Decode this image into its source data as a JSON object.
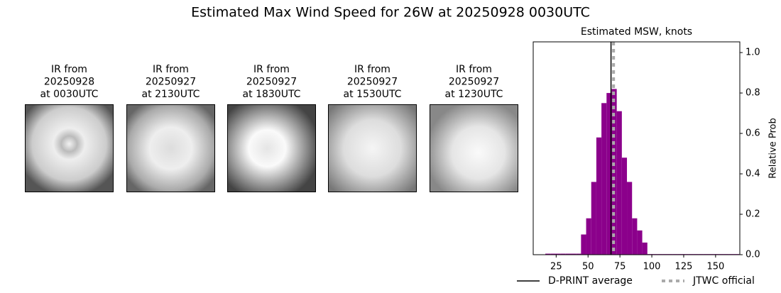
{
  "title": "Estimated Max Wind Speed for 26W at 20250928 0030UTC",
  "panels": [
    {
      "lines": [
        "IR from",
        "20250928",
        "at 0030UTC"
      ]
    },
    {
      "lines": [
        "IR from",
        "20250927",
        "at 2130UTC"
      ]
    },
    {
      "lines": [
        "IR from",
        "20250927",
        "at 1830UTC"
      ]
    },
    {
      "lines": [
        "IR from",
        "20250927",
        "at 1530UTC"
      ]
    },
    {
      "lines": [
        "IR from",
        "20250927",
        "at 1230UTC"
      ]
    }
  ],
  "chart_data": {
    "type": "histogram",
    "title": "Estimated MSW, knots",
    "y_label": "Relative Prob",
    "color": "#8b008b",
    "bins": [
      16.5,
      20.5,
      24.5,
      28.5,
      32.5,
      36.5,
      40.5,
      44.5,
      48.5,
      52.5,
      56.5,
      60.5,
      64.5,
      68.5,
      72.5,
      76.5,
      80.5,
      84.5,
      88.5,
      92.5,
      96.5,
      100.5,
      104.5,
      108.5,
      112.5,
      116.5,
      120.5,
      124.5,
      128.5,
      132.5,
      136.5,
      140.5,
      144.5,
      148.5,
      152.5,
      156.5,
      160.5,
      164.5,
      168.5
    ],
    "values": [
      0.005,
      0.005,
      0.005,
      0.005,
      0.005,
      0.005,
      0.005,
      0.1,
      0.18,
      0.36,
      0.58,
      0.75,
      0.8,
      0.82,
      0.71,
      0.48,
      0.36,
      0.18,
      0.12,
      0.06,
      0.003,
      0.003,
      0.003,
      0.003,
      0.003,
      0.003,
      0.003,
      0.003,
      0.003,
      0.003,
      0.003,
      0.003,
      0.003,
      0.003,
      0.003,
      0.003,
      0.003,
      0.003
    ],
    "vlines": [
      {
        "name": "D-PRINT average",
        "value": 68,
        "color": "#000000",
        "dashed": false
      },
      {
        "name": "JTWC official",
        "value": 70,
        "color": "#aaaaaa",
        "dashed": true
      }
    ],
    "xlim": [
      7,
      169
    ],
    "ylim": [
      0,
      1.053
    ],
    "xticks": [
      25,
      50,
      75,
      100,
      125,
      150
    ],
    "yticks": [
      {
        "value": 0,
        "label": "0.0"
      },
      {
        "value": 0.2,
        "label": "0.2"
      },
      {
        "value": 0.4,
        "label": "0.4"
      },
      {
        "value": 0.6,
        "label": "0.6"
      },
      {
        "value": 0.8,
        "label": "0.8"
      },
      {
        "value": 1.0,
        "label": "1.0"
      }
    ]
  }
}
